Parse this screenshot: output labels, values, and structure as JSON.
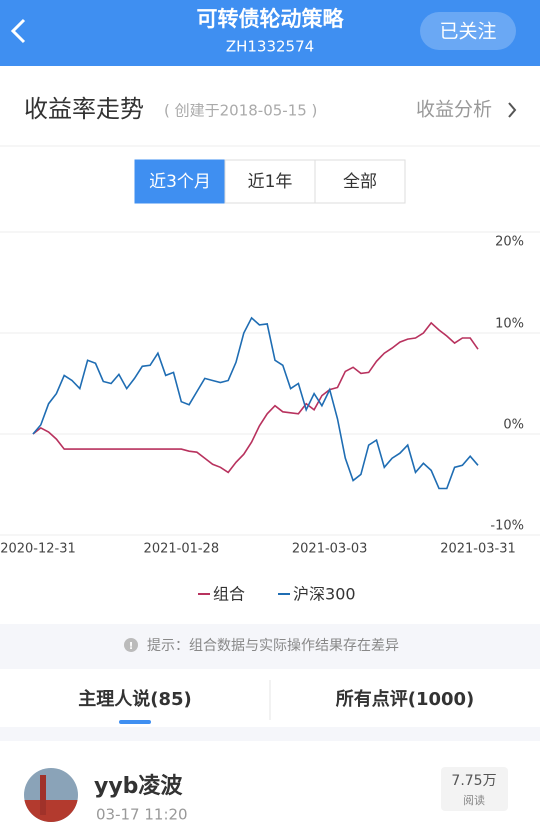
{
  "header": {
    "title": "可转债轮动策略",
    "subtitle": "ZH1332574",
    "follow_button": "已关注"
  },
  "section": {
    "title": "收益率走势",
    "created": "( 创建于2018-05-15 )",
    "link": "收益分析"
  },
  "range_tabs": [
    "近3个月",
    "近1年",
    "全部"
  ],
  "chart_data": {
    "type": "line",
    "categories": [
      "2020-12-31",
      null,
      null,
      null,
      null,
      null,
      null,
      null,
      null,
      null,
      null,
      null,
      null,
      null,
      null,
      null,
      null,
      null,
      null,
      "2021-01-28",
      null,
      null,
      null,
      null,
      null,
      null,
      null,
      null,
      null,
      null,
      null,
      null,
      null,
      null,
      null,
      null,
      null,
      null,
      "2021-03-03",
      null,
      null,
      null,
      null,
      null,
      null,
      null,
      null,
      null,
      null,
      null,
      null,
      null,
      null,
      null,
      null,
      null,
      null,
      "2021-03-31"
    ],
    "series": [
      {
        "name": "组合",
        "color": "#b8325e",
        "values": [
          0,
          0.6,
          0.2,
          -0.5,
          -1.5,
          -1.5,
          -1.5,
          -1.5,
          -1.5,
          -1.5,
          -1.5,
          -1.5,
          -1.5,
          -1.5,
          -1.5,
          -1.5,
          -1.5,
          -1.5,
          -1.5,
          -1.5,
          -1.7,
          -1.8,
          -2.4,
          -3.0,
          -3.3,
          -3.8,
          -2.8,
          -2.0,
          -0.8,
          0.8,
          2.0,
          2.8,
          2.2,
          2.1,
          2.0,
          3.0,
          2.4,
          3.8,
          4.4,
          4.6,
          6.2,
          6.6,
          6.0,
          6.1,
          7.2,
          8.0,
          8.5,
          9.1,
          9.4,
          9.5,
          10.0,
          11.0,
          10.3,
          9.7,
          9.0,
          9.5,
          9.5,
          8.4
        ]
      },
      {
        "name": "沪深300",
        "color": "#1f6db3",
        "values": [
          0,
          0.9,
          3.0,
          4.0,
          5.8,
          5.3,
          4.5,
          7.3,
          7.0,
          5.2,
          5.0,
          5.9,
          4.5,
          5.5,
          6.7,
          6.8,
          8.0,
          5.8,
          6.1,
          3.2,
          2.9,
          4.2,
          5.5,
          5.3,
          5.1,
          5.3,
          7.1,
          10.0,
          11.5,
          10.8,
          10.9,
          7.3,
          6.8,
          4.5,
          5.0,
          2.4,
          4.0,
          2.8,
          4.4,
          1.5,
          -2.4,
          -4.6,
          -4.0,
          -1.1,
          -0.6,
          -3.3,
          -2.4,
          -1.9,
          -1.1,
          -3.8,
          -2.9,
          -3.6,
          -5.4,
          -5.4,
          -3.3,
          -3.1,
          -2.2,
          -3.1
        ]
      }
    ],
    "ylim": [
      -10,
      20
    ],
    "yticks": [
      {
        "value": -10,
        "label": "-10%"
      },
      {
        "value": 0,
        "label": "0%"
      },
      {
        "value": 10,
        "label": "10%"
      },
      {
        "value": 20,
        "label": "20%"
      }
    ],
    "grid": true
  },
  "notice": "提示：组合数据与实际操作结果存在差异",
  "bottom_tabs": [
    "主理人说(85)",
    "所有点评(1000)"
  ],
  "post": {
    "author": "yyb凌波",
    "time": "03-17 11:20",
    "reads": "7.75万",
    "reads_label": "阅读"
  }
}
